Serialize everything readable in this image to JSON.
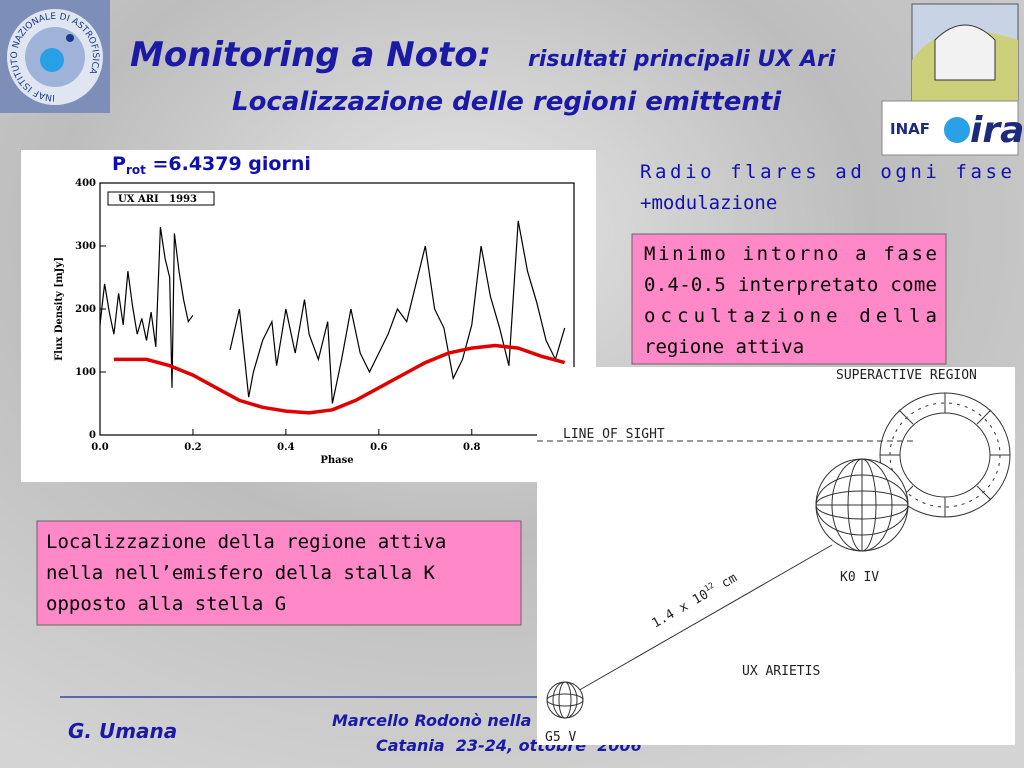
{
  "header": {
    "title": "Monitoring a Noto:",
    "title_detail": "risultati principali  UX Ari",
    "subtitle": "Localizzazione delle regioni emittenti"
  },
  "logos": {
    "left": "INAF ISTITUTO NAZIONALE DI ASTROFISICA",
    "right_inaf": "INAF",
    "right_ira": "ira"
  },
  "chart_data": {
    "type": "line",
    "title_main": "P",
    "title_sub": "rot",
    "title_rest": " =6.4379 giorni",
    "xlabel": "Phase",
    "ylabel": "Flux Density [mJy]",
    "xlim": [
      0,
      1.02
    ],
    "ylim": [
      0,
      400
    ],
    "xticks": [
      {
        "value": 0,
        "label": "0.0"
      },
      {
        "value": 0.2,
        "label": "0.2"
      },
      {
        "value": 0.4,
        "label": "0.4"
      },
      {
        "value": 0.6,
        "label": "0.6"
      },
      {
        "value": 0.8,
        "label": "0.8"
      }
    ],
    "yticks": [
      0,
      100,
      200,
      300,
      400
    ],
    "series": [
      {
        "name": "UX ARI   1993",
        "color": "#000000",
        "x": [
          0.0,
          0.01,
          0.02,
          0.03,
          0.04,
          0.05,
          0.06,
          0.07,
          0.08,
          0.09,
          0.1,
          0.11,
          0.12,
          0.13,
          0.14,
          0.15,
          0.155,
          0.16,
          0.17,
          0.18,
          0.19,
          0.2,
          0.24,
          0.28,
          0.3,
          0.32,
          0.33,
          0.35,
          0.37,
          0.38,
          0.4,
          0.42,
          0.44,
          0.45,
          0.47,
          0.49,
          0.5,
          0.52,
          0.54,
          0.56,
          0.58,
          0.6,
          0.62,
          0.64,
          0.66,
          0.68,
          0.7,
          0.72,
          0.74,
          0.76,
          0.78,
          0.8,
          0.82,
          0.84,
          0.86,
          0.88,
          0.9,
          0.92,
          0.94,
          0.96,
          0.98,
          1.0
        ],
        "values": [
          175,
          240,
          195,
          160,
          225,
          175,
          260,
          205,
          160,
          185,
          150,
          195,
          140,
          330,
          280,
          250,
          75,
          320,
          260,
          215,
          180,
          190,
          null,
          135,
          200,
          60,
          100,
          150,
          180,
          110,
          200,
          130,
          215,
          160,
          120,
          180,
          50,
          120,
          200,
          130,
          100,
          130,
          160,
          200,
          180,
          240,
          300,
          200,
          170,
          90,
          120,
          175,
          300,
          220,
          170,
          110,
          340,
          260,
          210,
          150,
          120,
          170
        ]
      },
      {
        "color": "#e00000",
        "x": [
          0.03,
          0.1,
          0.15,
          0.2,
          0.25,
          0.3,
          0.35,
          0.4,
          0.45,
          0.5,
          0.55,
          0.6,
          0.65,
          0.7,
          0.75,
          0.8,
          0.85,
          0.9,
          0.95,
          1.0
        ],
        "values": [
          120,
          120,
          110,
          95,
          75,
          55,
          44,
          38,
          35,
          40,
          55,
          75,
          95,
          115,
          130,
          138,
          142,
          138,
          125,
          115
        ]
      }
    ]
  },
  "notes": {
    "flares": "Radio flares ad ogni fase +modulazione",
    "minimum": "Minimo intorno a fase 0.4-0.5 interpretato come occultazione della regione attiva",
    "localization": "Localizzazione della regione attiva nella nell’emisfero della stalla K opposto alla stella G"
  },
  "diagram": {
    "superactive": "SUPERACTIVE REGION",
    "line_of_sight": "LINE OF SIGHT",
    "k_star": "K0 IV",
    "system": "UX ARIETIS",
    "g_star": "G5 V",
    "distance": "1.4 x 10",
    "distance_exp": "12",
    "distance_unit": " cm"
  },
  "footer": {
    "author": "G. Umana",
    "event_line1": "Marcello Rodonò nella",
    "event_line2": "Catania  23-24, ottobre  2006"
  }
}
